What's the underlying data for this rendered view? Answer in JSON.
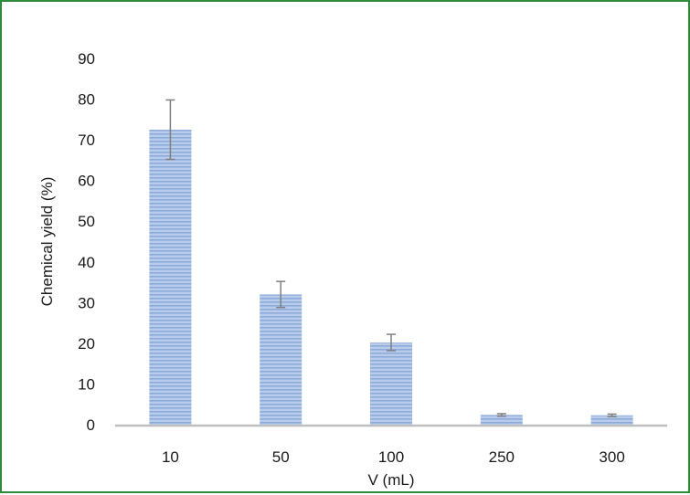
{
  "chart_data": {
    "type": "bar",
    "xlabel": "V (mL)",
    "ylabel": "Chemical yield (%)",
    "categories": [
      "10",
      "50",
      "100",
      "250",
      "300"
    ],
    "values": [
      72.5,
      32,
      20.2,
      2.4,
      2.3
    ],
    "error": [
      7.3,
      3.2,
      2,
      0.3,
      0.3
    ],
    "ylim": [
      0,
      90
    ],
    "yticks": [
      0,
      10,
      20,
      30,
      40,
      50,
      60,
      70,
      80,
      90
    ],
    "grid": false,
    "colors": {
      "bar_fill": "#b9cdea",
      "bar_stripe": "#8eaadc",
      "error_bar": "#7f7f7f",
      "axis_line": "#bfbfbf",
      "frame": "#2e8b3a"
    }
  }
}
